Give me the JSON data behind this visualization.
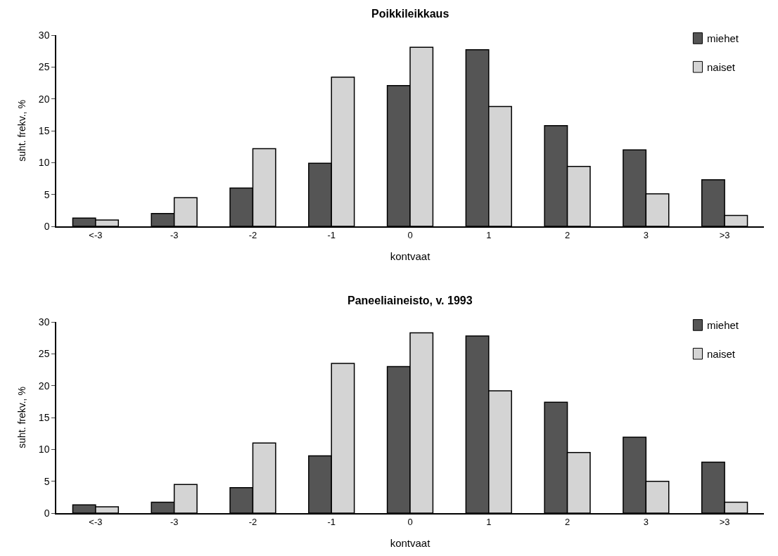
{
  "chart_data": [
    {
      "type": "bar",
      "title": "Poikkileikkaus",
      "xlabel": "kontvaat",
      "ylabel": "suht. frekv., %",
      "categories": [
        "<-3",
        "-3",
        "-2",
        "-1",
        "0",
        "1",
        "2",
        "3",
        ">3"
      ],
      "ylim": [
        0,
        30
      ],
      "yticks": [
        0,
        5,
        10,
        15,
        20,
        25,
        30
      ],
      "legend": "top right",
      "series": [
        {
          "name": "miehet",
          "color": "#555555",
          "values": [
            1.3,
            2.0,
            6.0,
            9.9,
            22.1,
            27.7,
            15.8,
            12.0,
            7.3
          ]
        },
        {
          "name": "naiset",
          "color": "#d4d4d4",
          "values": [
            1.0,
            4.5,
            12.2,
            23.4,
            28.1,
            18.8,
            9.4,
            5.1,
            1.7
          ]
        }
      ]
    },
    {
      "type": "bar",
      "title": "Paneeliaineisto, v. 1993",
      "xlabel": "kontvaat",
      "ylabel": "suht. frekv., %",
      "categories": [
        "<-3",
        "-3",
        "-2",
        "-1",
        "0",
        "1",
        "2",
        "3",
        ">3"
      ],
      "ylim": [
        0,
        30
      ],
      "yticks": [
        0,
        5,
        10,
        15,
        20,
        25,
        30
      ],
      "legend": "top right",
      "series": [
        {
          "name": "miehet",
          "color": "#555555",
          "values": [
            1.3,
            1.7,
            4.0,
            9.0,
            23.0,
            27.8,
            17.4,
            11.9,
            8.0
          ]
        },
        {
          "name": "naiset",
          "color": "#d4d4d4",
          "values": [
            1.0,
            4.5,
            11.0,
            23.5,
            28.3,
            19.2,
            9.5,
            5.0,
            1.7
          ]
        }
      ]
    }
  ]
}
